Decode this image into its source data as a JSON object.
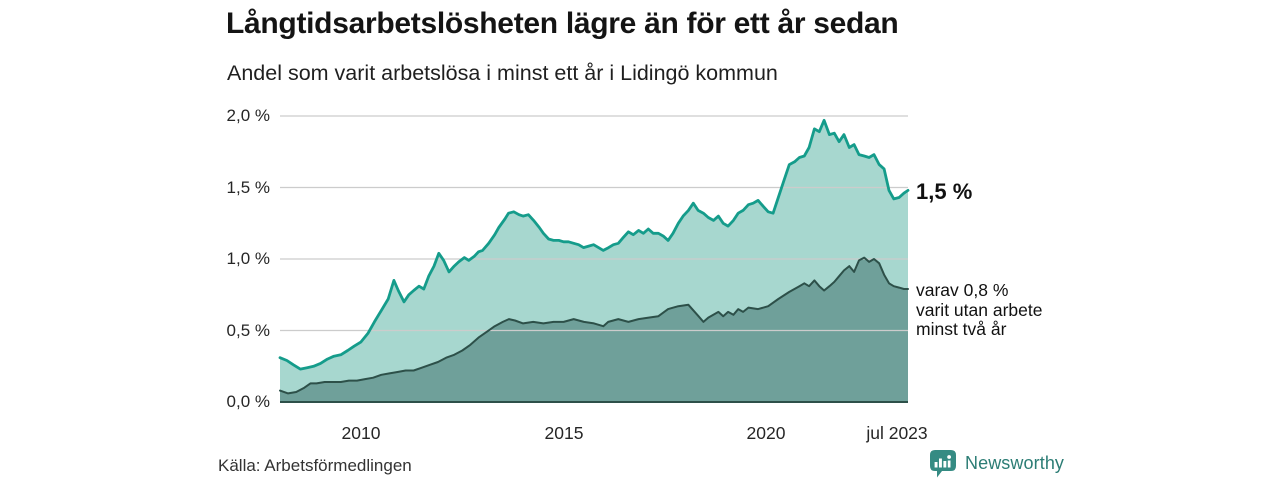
{
  "header": {
    "title": "Långtidsarbetslösheten lägre än för ett år sedan",
    "subtitle": "Andel som varit arbetslösa i minst ett år i Lidingö kommun"
  },
  "footer": {
    "source": "Källa: Arbetsförmedlingen",
    "brand": "Newsworthy"
  },
  "colors": {
    "series1_line": "#159c8b",
    "series1_fill": "#a7d7cf",
    "series2_line": "#2d5049",
    "series2_fill": "#6fa09a",
    "gridline": "#cccccc",
    "brand_teal": "#358b83",
    "brand_text": "#2c7d75"
  },
  "chart_data": {
    "type": "area",
    "title": "Långtidsarbetslösheten lägre än för ett år sedan",
    "subtitle": "Andel som varit arbetslösa i minst ett år i Lidingö kommun",
    "source": "Källa: Arbetsförmedlingen",
    "unit": "%",
    "grid": true,
    "x_range": [
      2008.0,
      2023.5
    ],
    "y_range": [
      0,
      2.0
    ],
    "y_ticks": [
      {
        "label": "2,0 %",
        "value": 2.0
      },
      {
        "label": "1,5 %",
        "value": 1.5
      },
      {
        "label": "1,0 %",
        "value": 1.0
      },
      {
        "label": "0,5 %",
        "value": 0.5
      },
      {
        "label": "0,0 %",
        "value": 0.0
      }
    ],
    "x_ticks": [
      {
        "label": "2010",
        "value": 2010
      },
      {
        "label": "2015",
        "value": 2015
      },
      {
        "label": "2020",
        "value": 2020
      },
      {
        "label": "jul 2023",
        "value": 2023.5
      }
    ],
    "series": [
      {
        "end_label": "1,5 %",
        "end_value": 1.5,
        "line_color": "#159c8b",
        "fill_color": "#a7d7cf",
        "points": [
          [
            2008.0,
            0.31
          ],
          [
            2008.17,
            0.29
          ],
          [
            2008.33,
            0.26
          ],
          [
            2008.5,
            0.23
          ],
          [
            2008.67,
            0.24
          ],
          [
            2008.83,
            0.25
          ],
          [
            2009.0,
            0.27
          ],
          [
            2009.17,
            0.3
          ],
          [
            2009.33,
            0.32
          ],
          [
            2009.5,
            0.33
          ],
          [
            2009.67,
            0.36
          ],
          [
            2009.83,
            0.39
          ],
          [
            2010.0,
            0.42
          ],
          [
            2010.17,
            0.48
          ],
          [
            2010.33,
            0.56
          ],
          [
            2010.5,
            0.64
          ],
          [
            2010.67,
            0.72
          ],
          [
            2010.81,
            0.85
          ],
          [
            2010.92,
            0.78
          ],
          [
            2011.06,
            0.7
          ],
          [
            2011.18,
            0.75
          ],
          [
            2011.3,
            0.78
          ],
          [
            2011.43,
            0.81
          ],
          [
            2011.55,
            0.79
          ],
          [
            2011.67,
            0.88
          ],
          [
            2011.8,
            0.95
          ],
          [
            2011.92,
            1.04
          ],
          [
            2012.04,
            0.99
          ],
          [
            2012.17,
            0.91
          ],
          [
            2012.3,
            0.95
          ],
          [
            2012.41,
            0.98
          ],
          [
            2012.55,
            1.01
          ],
          [
            2012.66,
            0.99
          ],
          [
            2012.8,
            1.02
          ],
          [
            2012.9,
            1.05
          ],
          [
            2013.0,
            1.06
          ],
          [
            2013.15,
            1.11
          ],
          [
            2013.3,
            1.17
          ],
          [
            2013.4,
            1.22
          ],
          [
            2013.55,
            1.28
          ],
          [
            2013.64,
            1.32
          ],
          [
            2013.77,
            1.33
          ],
          [
            2013.9,
            1.31
          ],
          [
            2014.0,
            1.3
          ],
          [
            2014.13,
            1.31
          ],
          [
            2014.26,
            1.27
          ],
          [
            2014.4,
            1.22
          ],
          [
            2014.5,
            1.18
          ],
          [
            2014.63,
            1.14
          ],
          [
            2014.75,
            1.13
          ],
          [
            2014.88,
            1.13
          ],
          [
            2015.0,
            1.12
          ],
          [
            2015.12,
            1.12
          ],
          [
            2015.25,
            1.11
          ],
          [
            2015.37,
            1.1
          ],
          [
            2015.49,
            1.08
          ],
          [
            2015.62,
            1.09
          ],
          [
            2015.74,
            1.1
          ],
          [
            2015.86,
            1.08
          ],
          [
            2015.98,
            1.06
          ],
          [
            2016.11,
            1.08
          ],
          [
            2016.23,
            1.1
          ],
          [
            2016.35,
            1.11
          ],
          [
            2016.47,
            1.15
          ],
          [
            2016.6,
            1.19
          ],
          [
            2016.72,
            1.17
          ],
          [
            2016.85,
            1.2
          ],
          [
            2016.97,
            1.18
          ],
          [
            2017.09,
            1.21
          ],
          [
            2017.21,
            1.18
          ],
          [
            2017.34,
            1.18
          ],
          [
            2017.46,
            1.16
          ],
          [
            2017.58,
            1.13
          ],
          [
            2017.7,
            1.18
          ],
          [
            2017.83,
            1.25
          ],
          [
            2017.95,
            1.3
          ],
          [
            2018.08,
            1.34
          ],
          [
            2018.2,
            1.39
          ],
          [
            2018.32,
            1.34
          ],
          [
            2018.45,
            1.32
          ],
          [
            2018.57,
            1.29
          ],
          [
            2018.7,
            1.27
          ],
          [
            2018.82,
            1.3
          ],
          [
            2018.94,
            1.25
          ],
          [
            2019.06,
            1.23
          ],
          [
            2019.19,
            1.27
          ],
          [
            2019.31,
            1.32
          ],
          [
            2019.43,
            1.34
          ],
          [
            2019.56,
            1.38
          ],
          [
            2019.68,
            1.39
          ],
          [
            2019.8,
            1.41
          ],
          [
            2019.92,
            1.37
          ],
          [
            2020.05,
            1.33
          ],
          [
            2020.17,
            1.32
          ],
          [
            2020.3,
            1.43
          ],
          [
            2020.44,
            1.55
          ],
          [
            2020.57,
            1.66
          ],
          [
            2020.7,
            1.68
          ],
          [
            2020.82,
            1.71
          ],
          [
            2020.94,
            1.72
          ],
          [
            2021.06,
            1.78
          ],
          [
            2021.19,
            1.91
          ],
          [
            2021.31,
            1.89
          ],
          [
            2021.43,
            1.97
          ],
          [
            2021.56,
            1.87
          ],
          [
            2021.68,
            1.88
          ],
          [
            2021.8,
            1.82
          ],
          [
            2021.92,
            1.87
          ],
          [
            2022.05,
            1.78
          ],
          [
            2022.17,
            1.8
          ],
          [
            2022.29,
            1.73
          ],
          [
            2022.42,
            1.72
          ],
          [
            2022.54,
            1.71
          ],
          [
            2022.66,
            1.73
          ],
          [
            2022.79,
            1.66
          ],
          [
            2022.91,
            1.63
          ],
          [
            2023.03,
            1.48
          ],
          [
            2023.15,
            1.42
          ],
          [
            2023.28,
            1.43
          ],
          [
            2023.4,
            1.46
          ],
          [
            2023.5,
            1.48
          ]
        ]
      },
      {
        "end_label": "varav 0,8 %\nvarit utan arbete\nminst två år",
        "end_value": 0.8,
        "line_color": "#2d5049",
        "fill_color": "#6fa09a",
        "points": [
          [
            2008.0,
            0.08
          ],
          [
            2008.2,
            0.06
          ],
          [
            2008.4,
            0.07
          ],
          [
            2008.6,
            0.1
          ],
          [
            2008.75,
            0.13
          ],
          [
            2008.9,
            0.13
          ],
          [
            2009.1,
            0.14
          ],
          [
            2009.3,
            0.14
          ],
          [
            2009.5,
            0.14
          ],
          [
            2009.7,
            0.15
          ],
          [
            2009.9,
            0.15
          ],
          [
            2010.1,
            0.16
          ],
          [
            2010.3,
            0.17
          ],
          [
            2010.5,
            0.19
          ],
          [
            2010.7,
            0.2
          ],
          [
            2010.9,
            0.21
          ],
          [
            2011.1,
            0.22
          ],
          [
            2011.3,
            0.22
          ],
          [
            2011.5,
            0.24
          ],
          [
            2011.7,
            0.26
          ],
          [
            2011.9,
            0.28
          ],
          [
            2012.1,
            0.31
          ],
          [
            2012.3,
            0.33
          ],
          [
            2012.5,
            0.36
          ],
          [
            2012.7,
            0.4
          ],
          [
            2012.9,
            0.45
          ],
          [
            2013.1,
            0.49
          ],
          [
            2013.3,
            0.53
          ],
          [
            2013.5,
            0.56
          ],
          [
            2013.65,
            0.58
          ],
          [
            2013.8,
            0.57
          ],
          [
            2014.0,
            0.55
          ],
          [
            2014.25,
            0.56
          ],
          [
            2014.5,
            0.55
          ],
          [
            2014.75,
            0.56
          ],
          [
            2015.0,
            0.56
          ],
          [
            2015.25,
            0.58
          ],
          [
            2015.5,
            0.56
          ],
          [
            2015.75,
            0.55
          ],
          [
            2015.98,
            0.53
          ],
          [
            2016.1,
            0.56
          ],
          [
            2016.35,
            0.58
          ],
          [
            2016.6,
            0.56
          ],
          [
            2016.85,
            0.58
          ],
          [
            2017.1,
            0.59
          ],
          [
            2017.34,
            0.6
          ],
          [
            2017.58,
            0.65
          ],
          [
            2017.83,
            0.67
          ],
          [
            2018.08,
            0.68
          ],
          [
            2018.33,
            0.6
          ],
          [
            2018.45,
            0.56
          ],
          [
            2018.57,
            0.59
          ],
          [
            2018.82,
            0.63
          ],
          [
            2018.94,
            0.6
          ],
          [
            2019.06,
            0.63
          ],
          [
            2019.19,
            0.61
          ],
          [
            2019.31,
            0.65
          ],
          [
            2019.43,
            0.63
          ],
          [
            2019.56,
            0.66
          ],
          [
            2019.8,
            0.65
          ],
          [
            2020.05,
            0.67
          ],
          [
            2020.3,
            0.72
          ],
          [
            2020.57,
            0.77
          ],
          [
            2020.82,
            0.81
          ],
          [
            2020.94,
            0.83
          ],
          [
            2021.06,
            0.81
          ],
          [
            2021.19,
            0.85
          ],
          [
            2021.31,
            0.81
          ],
          [
            2021.43,
            0.78
          ],
          [
            2021.56,
            0.81
          ],
          [
            2021.68,
            0.84
          ],
          [
            2021.8,
            0.88
          ],
          [
            2021.92,
            0.92
          ],
          [
            2022.05,
            0.95
          ],
          [
            2022.17,
            0.91
          ],
          [
            2022.29,
            0.99
          ],
          [
            2022.42,
            1.01
          ],
          [
            2022.54,
            0.98
          ],
          [
            2022.66,
            1.0
          ],
          [
            2022.79,
            0.97
          ],
          [
            2022.91,
            0.89
          ],
          [
            2023.03,
            0.83
          ],
          [
            2023.15,
            0.81
          ],
          [
            2023.28,
            0.8
          ],
          [
            2023.4,
            0.79
          ],
          [
            2023.5,
            0.79
          ]
        ]
      }
    ]
  }
}
